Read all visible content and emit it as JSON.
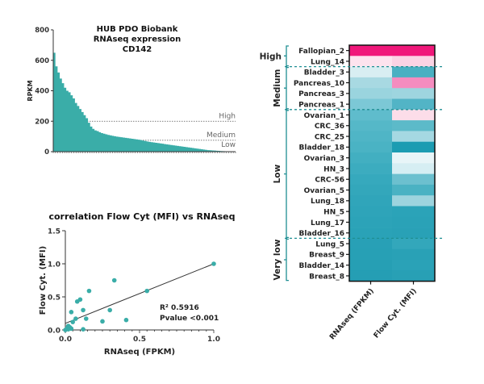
{
  "chart_data": [
    {
      "type": "area",
      "title_lines": [
        "HUB PDO Biobank",
        "RNAseq expression",
        "CD142"
      ],
      "xlabel": "",
      "ylabel": "RPKM",
      "ylim": [
        0,
        800
      ],
      "yticks": [
        "0",
        "200",
        "400",
        "600",
        "800"
      ],
      "ytick_values": [
        0,
        200,
        400,
        600,
        800
      ],
      "color": "#3aada8",
      "thresholds": [
        {
          "label": "High",
          "value": 200
        },
        {
          "label": "Medium",
          "value": 75
        },
        {
          "label": "Low",
          "value": 0
        }
      ],
      "sorted_values": [
        650,
        560,
        520,
        480,
        450,
        420,
        400,
        390,
        370,
        350,
        320,
        300,
        280,
        260,
        240,
        220,
        190,
        165,
        150,
        140,
        135,
        128,
        122,
        118,
        114,
        110,
        107,
        104,
        101,
        99,
        97,
        95,
        93,
        91,
        89,
        87,
        85,
        83,
        81,
        79,
        76,
        73,
        70,
        67,
        64,
        62,
        60,
        58,
        56,
        54,
        52,
        50,
        48,
        46,
        44,
        42,
        40,
        38,
        36,
        34,
        32,
        30,
        28,
        26,
        24,
        22,
        20,
        18,
        16,
        14,
        12,
        10,
        9,
        8,
        7,
        6,
        5,
        4,
        3,
        2,
        1.5,
        1,
        0.8,
        0.5
      ]
    },
    {
      "type": "scatter",
      "title": "correlation Flow Cyt (MFI) vs RNAseq",
      "xlabel": "RNAseq (FPKM)",
      "ylabel": "Flow Cyt. (MFI)",
      "xlim": [
        0,
        1.0
      ],
      "ylim": [
        0,
        1.5
      ],
      "xticks": [
        "0.0",
        "0.5",
        "1.0"
      ],
      "xtick_values": [
        0,
        0.5,
        1.0
      ],
      "yticks": [
        "0.0",
        "0.5",
        "1.0",
        "1.5"
      ],
      "ytick_values": [
        0,
        0.5,
        1.0,
        1.5
      ],
      "color": "#3aada8",
      "points": [
        {
          "x": 1.0,
          "y": 1.0
        },
        {
          "x": 0.55,
          "y": 0.59
        },
        {
          "x": 0.33,
          "y": 0.75
        },
        {
          "x": 0.16,
          "y": 0.59
        },
        {
          "x": 0.1,
          "y": 0.46
        },
        {
          "x": 0.08,
          "y": 0.43
        },
        {
          "x": 0.04,
          "y": 0.27
        },
        {
          "x": 0.12,
          "y": 0.3
        },
        {
          "x": 0.3,
          "y": 0.3
        },
        {
          "x": 0.07,
          "y": 0.17
        },
        {
          "x": 0.14,
          "y": 0.17
        },
        {
          "x": 0.05,
          "y": 0.12
        },
        {
          "x": 0.25,
          "y": 0.13
        },
        {
          "x": 0.41,
          "y": 0.15
        },
        {
          "x": 0.12,
          "y": 0.01
        },
        {
          "x": 0.02,
          "y": 0.06
        },
        {
          "x": 0.03,
          "y": 0.04
        },
        {
          "x": 0.01,
          "y": 0.02
        },
        {
          "x": 0.02,
          "y": 0.01
        },
        {
          "x": 0.04,
          "y": 0.02
        },
        {
          "x": 0.0,
          "y": 0.0
        }
      ],
      "regression": {
        "x": [
          0,
          1.0
        ],
        "y": [
          0.1,
          1.0
        ]
      },
      "annotations": {
        "r2_label": "R²",
        "r2_value": "0.5916",
        "pvalue": "Pvalue <0.001"
      }
    },
    {
      "type": "heatmap",
      "columns": [
        "RNAseq (FPKM)",
        "Flow Cyt. (MFI)"
      ],
      "rows": [
        "Fallopian_2",
        "Lung_14",
        "Bladder_3",
        "Pancreas_10",
        "Pancreas_3",
        "Pancreas_1",
        "Ovarian_1",
        "CRC_36",
        "CRC_25",
        "Bladder_18",
        "Ovarian_3",
        "HN_3",
        "CRC-56",
        "Ovarian_5",
        "Lung_18",
        "HN_5",
        "Lung_17",
        "Bladder_16",
        "Lung_5",
        "Breast_9",
        "Bladder_14",
        "Breast_8"
      ],
      "groups": [
        {
          "label": "High",
          "start": 0,
          "end": 1
        },
        {
          "label": "Medium",
          "start": 2,
          "end": 5
        },
        {
          "label": "Low",
          "start": 6,
          "end": 17
        },
        {
          "label": "Very low",
          "start": 18,
          "end": 21
        }
      ],
      "colors": [
        [
          "#f0177a",
          "#f0177a"
        ],
        [
          "#fde3ee",
          "#fbd3e4"
        ],
        [
          "#d8eef2",
          "#4ab0c2"
        ],
        [
          "#a8d9e2",
          "#f58cbf"
        ],
        [
          "#9ad4de",
          "#9ed5df"
        ],
        [
          "#7cc8d6",
          "#52b4c6"
        ],
        [
          "#5fbccc",
          "#fcdde9"
        ],
        [
          "#55b8c8",
          "#5cbac9"
        ],
        [
          "#4fb5c6",
          "#a5d8e2"
        ],
        [
          "#4ab3c4",
          "#1c9cb2"
        ],
        [
          "#42afc1",
          "#e8f5f8"
        ],
        [
          "#3cacbf",
          "#d6eef3"
        ],
        [
          "#36a9bd",
          "#6cc0cf"
        ],
        [
          "#33a7bb",
          "#4ab2c3"
        ],
        [
          "#30a5ba",
          "#9dd4de"
        ],
        [
          "#2ea4b9",
          "#2ba3b8"
        ],
        [
          "#2ca3b8",
          "#2aa2b7"
        ],
        [
          "#2aa2b7",
          "#29a1b6"
        ],
        [
          "#28a0b6",
          "#33a7bb"
        ],
        [
          "#27a0b5",
          "#29a1b6"
        ],
        [
          "#269fb4",
          "#2aa2b7"
        ],
        [
          "#259eb4",
          "#28a0b5"
        ]
      ]
    }
  ]
}
